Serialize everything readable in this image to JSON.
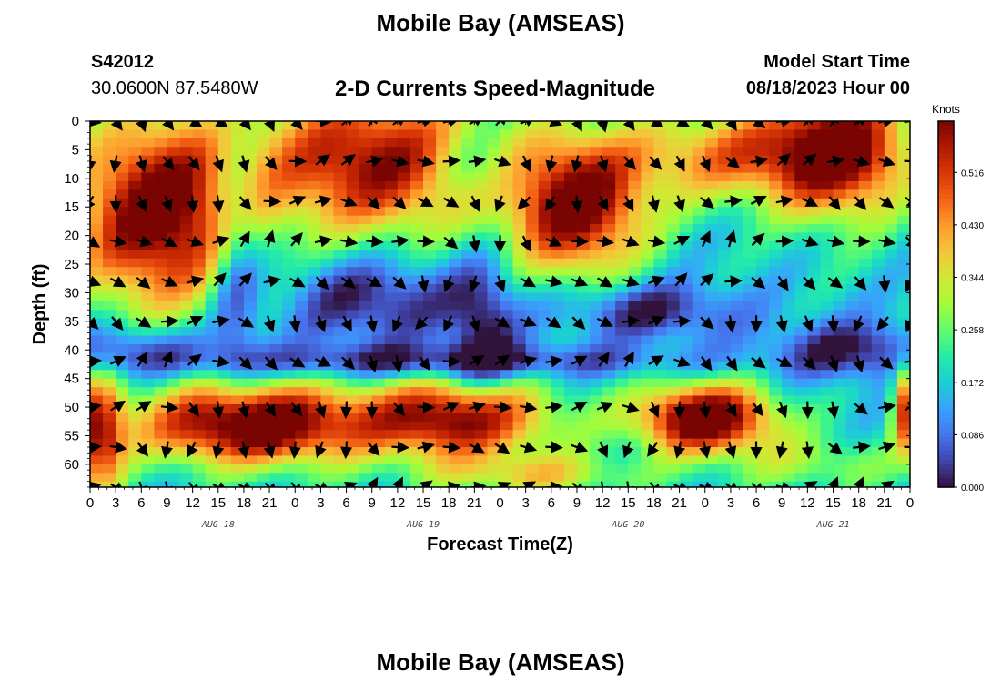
{
  "header": {
    "title": "Mobile Bay (AMSEAS)",
    "station_id": "S42012",
    "coords": "30.0600N  87.5480W",
    "subtitle": "2-D Currents Speed-Magnitude",
    "model_start_label": "Model Start Time",
    "model_start_value": "08/18/2023 Hour 00"
  },
  "footer": {
    "title": "Mobile Bay (AMSEAS)"
  },
  "chart_data": {
    "type": "heatmap",
    "title": "2-D Currents Speed-Magnitude",
    "xlabel": "Forecast Time(Z)",
    "ylabel": "Depth (ft)",
    "x_range_hours": [
      0,
      96
    ],
    "ylim": [
      0,
      64
    ],
    "x_tick_labels": [
      "0",
      "3",
      "6",
      "9",
      "12",
      "15",
      "18",
      "21",
      "0",
      "3",
      "6",
      "9",
      "12",
      "15",
      "18",
      "21",
      "0",
      "3",
      "6",
      "9",
      "12",
      "15",
      "18",
      "21",
      "0",
      "3",
      "6",
      "9",
      "12",
      "15",
      "18",
      "21",
      "0"
    ],
    "date_labels": [
      "AUG 18",
      "AUG 19",
      "AUG 20",
      "AUG 21"
    ],
    "y_ticks": [
      0,
      5,
      10,
      15,
      20,
      25,
      30,
      35,
      40,
      45,
      50,
      55,
      60
    ],
    "colorbar": {
      "units": "Knots",
      "min": 0.0,
      "max": 0.6,
      "ticks": [
        "0.516",
        "0.430",
        "0.344",
        "0.258",
        "0.172",
        "0.086",
        "0.000"
      ]
    },
    "arrow_depths_ft": [
      0,
      7,
      14,
      21,
      28,
      35,
      42,
      50,
      57,
      64
    ],
    "arrow_interval_hours": 3,
    "colors": [
      "#30123b",
      "#4145ab",
      "#4675ed",
      "#39a2fc",
      "#1bcfd4",
      "#24eca6",
      "#61fc6c",
      "#a4fc3b",
      "#d1e834",
      "#f3c63a",
      "#fe9b2d",
      "#f36315",
      "#d93806",
      "#b11901",
      "#7a0402"
    ]
  }
}
